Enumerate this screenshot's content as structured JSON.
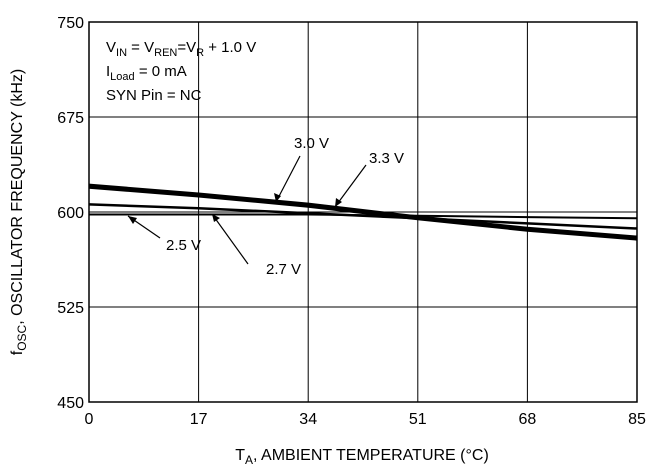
{
  "chart_data": {
    "type": "line",
    "title": "",
    "xlabel": {
      "main": "T",
      "sub": "A",
      "rest": ", AMBIENT TEMPERATURE (°C)"
    },
    "ylabel": {
      "main": "f",
      "sub": "OSC",
      "rest": ", OSCILLATOR FREQUENCY (kHz)"
    },
    "xlim": [
      0,
      85
    ],
    "ylim": [
      450,
      750
    ],
    "xticks": [
      0,
      17,
      34,
      51,
      68,
      85
    ],
    "yticks": [
      450,
      525,
      600,
      675,
      750
    ],
    "grid": true,
    "conditions": {
      "line1": {
        "a": "V",
        "a_sub": "IN",
        "b": " = V",
        "b_sub": "REN",
        "c": "=V",
        "c_sub": "R",
        "d": " + 1.0 V"
      },
      "line2": {
        "a": "I",
        "a_sub": "Load",
        "b": " = 0 mA"
      },
      "line3": "SYN Pin = NC"
    },
    "series": [
      {
        "name": "2.5 V",
        "x": [
          0,
          17,
          34,
          51,
          68,
          85
        ],
        "y": [
          598,
          598,
          598,
          597,
          596,
          595
        ]
      },
      {
        "name": "2.7 V",
        "x": [
          0,
          17,
          34,
          51,
          68,
          85
        ],
        "y": [
          606,
          603,
          599,
          595,
          591,
          587
        ]
      },
      {
        "name": "3.0 V",
        "x": [
          0,
          17,
          34,
          51,
          68,
          85
        ],
        "y": [
          620,
          613,
          605,
          595,
          586,
          579
        ]
      },
      {
        "name": "3.3 V",
        "x": [
          0,
          17,
          34,
          51,
          68,
          85
        ],
        "y": [
          621,
          614,
          606,
          596,
          587,
          580
        ]
      }
    ],
    "series_labels": [
      "3.0 V",
      "3.3 V",
      "2.5 V",
      "2.7 V"
    ]
  }
}
